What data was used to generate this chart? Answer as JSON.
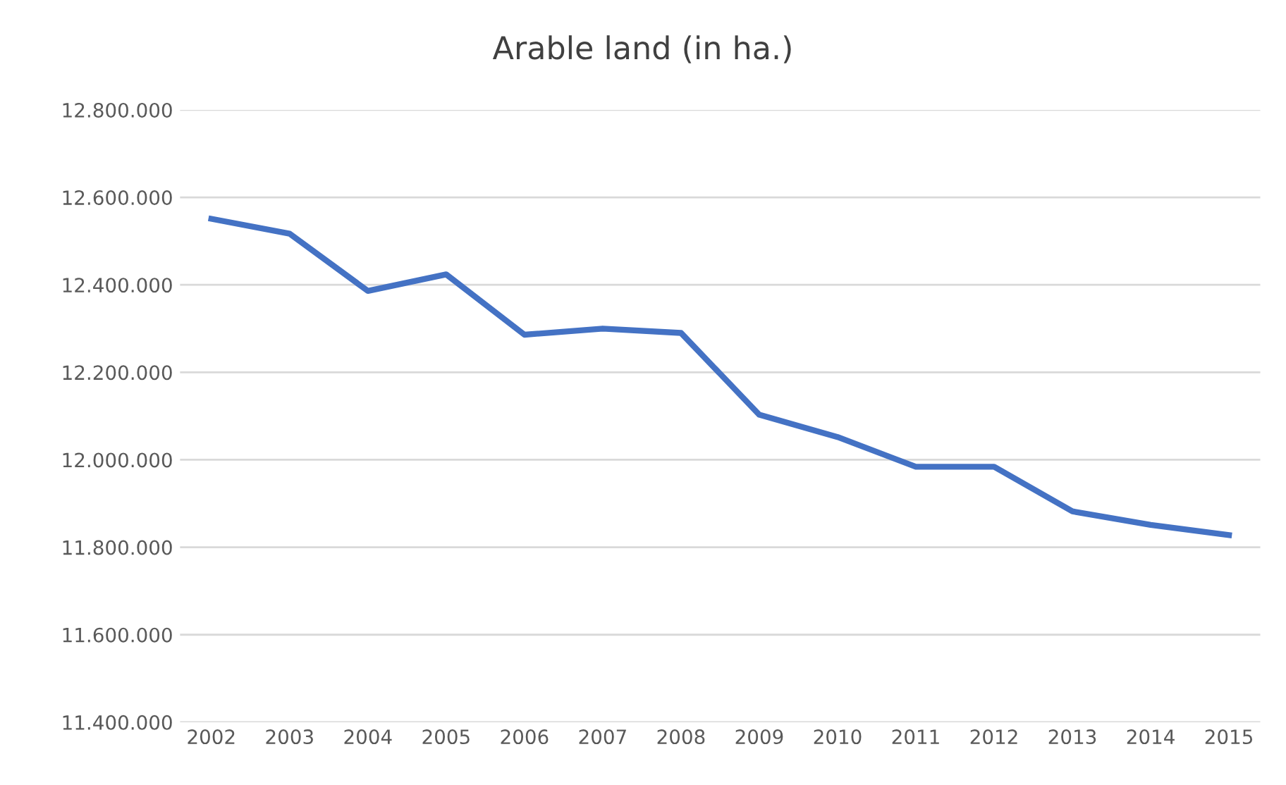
{
  "chart_data": {
    "type": "line",
    "title": "Arable land (in ha.)",
    "categories": [
      "2002",
      "2003",
      "2004",
      "2005",
      "2006",
      "2007",
      "2008",
      "2009",
      "2010",
      "2011",
      "2012",
      "2013",
      "2014",
      "2015"
    ],
    "series": [
      {
        "color": "#4472c4",
        "values": [
          12551000,
          12517000,
          12386000,
          12424000,
          12286000,
          12300000,
          12290000,
          12103000,
          12052000,
          11984000,
          11984000,
          11882000,
          11851000,
          11828000
        ]
      }
    ],
    "ylim": [
      11400000,
      12800000
    ],
    "yticks": [
      {
        "value": 11400000,
        "label": "11.400.000"
      },
      {
        "value": 11600000,
        "label": "11.600.000"
      },
      {
        "value": 11800000,
        "label": "11.800.000"
      },
      {
        "value": 12000000,
        "label": "12.000.000"
      },
      {
        "value": 12200000,
        "label": "12.200.000"
      },
      {
        "value": 12400000,
        "label": "12.400.000"
      },
      {
        "value": 12600000,
        "label": "12.600.000"
      },
      {
        "value": 12800000,
        "label": "12.800.000"
      }
    ],
    "grid": "y",
    "marker": "none",
    "line_style": "solid"
  }
}
